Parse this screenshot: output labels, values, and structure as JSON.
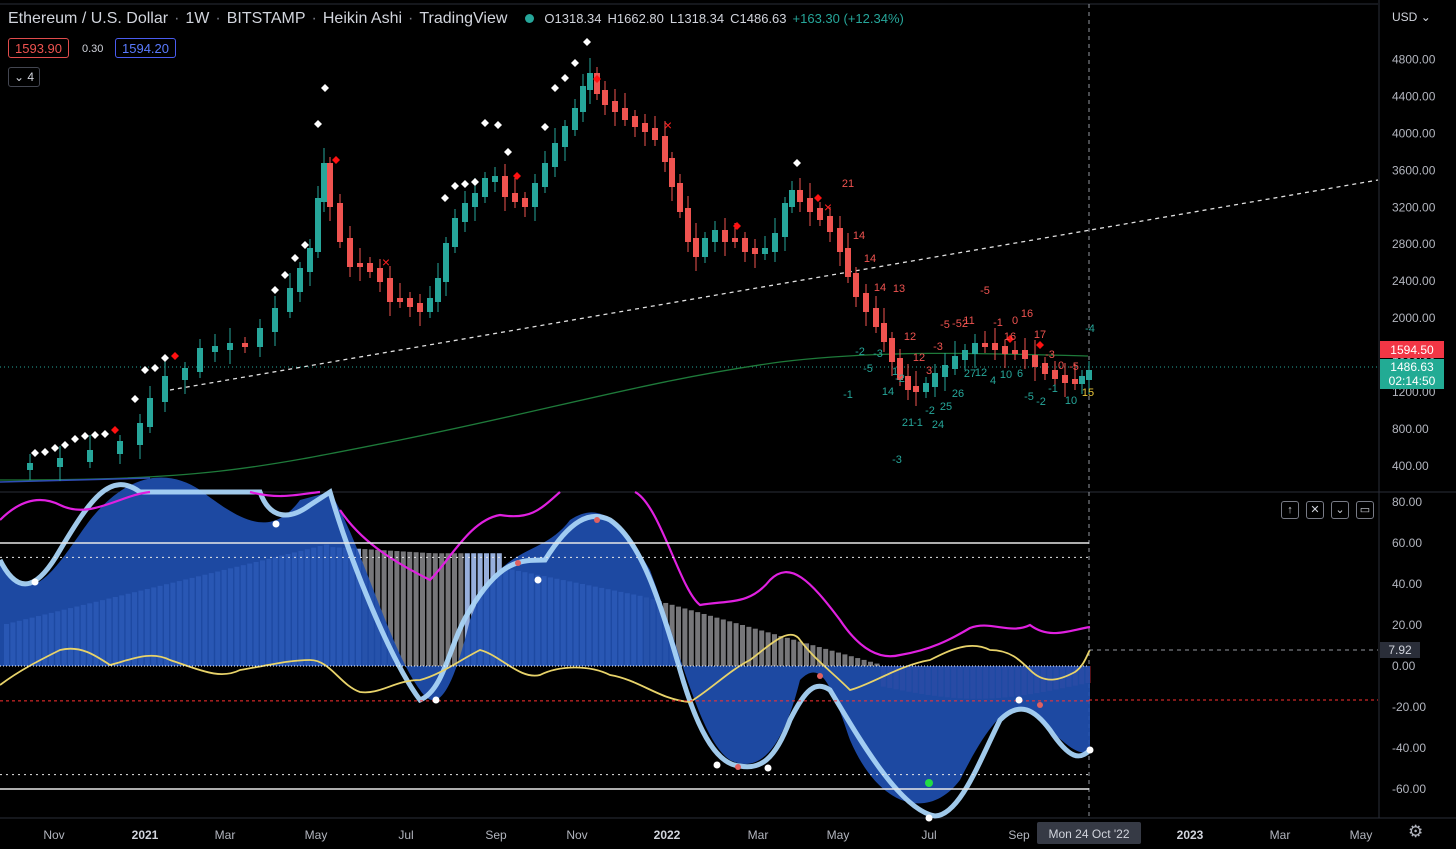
{
  "header": {
    "symbol": "Ethereum / U.S. Dollar",
    "interval": "1W",
    "exchange": "BITSTAMP",
    "chart_style": "Heikin Ashi",
    "provider": "TradingView",
    "open": "O1318.34",
    "high": "H1662.80",
    "low": "L1318.34",
    "close": "C1486.63",
    "change": "+163.30 (+12.34%)"
  },
  "trade": {
    "sell_price": "1593.90",
    "spread": "0.30",
    "buy_price": "1594.20"
  },
  "indicator_collapse": {
    "chevron": "⌄",
    "count": "4"
  },
  "currency_menu": "USD",
  "price_axis": {
    "ticks": [
      "4800.00",
      "4400.00",
      "4000.00",
      "3600.00",
      "3200.00",
      "2800.00",
      "2400.00",
      "2000.00",
      "1600.00",
      "1200.00",
      "800.00",
      "400.00"
    ]
  },
  "price_badges": {
    "red": "1594.50",
    "green_price": "1486.63",
    "green_timer": "02:14:50"
  },
  "osc_axis": {
    "ticks": [
      "80.00",
      "60.00",
      "40.00",
      "20.00",
      "0.00",
      "-20.00",
      "-40.00",
      "-60.00"
    ],
    "marker": "7.92"
  },
  "time_axis": {
    "labels": [
      "Nov",
      "2021",
      "Mar",
      "May",
      "Jul",
      "Sep",
      "Nov",
      "2022",
      "Mar",
      "May",
      "Jul",
      "Sep",
      "2023",
      "Mar",
      "May"
    ],
    "crosshair": "Mon 24 Oct '22"
  },
  "pane_buttons": [
    "↑",
    "✕",
    "⌄",
    "▭"
  ],
  "td_labels": [
    "21",
    "14",
    "14",
    "14",
    "13",
    "12",
    "12",
    "3",
    "-3",
    "-5",
    "-52",
    "-5",
    "11",
    "-1",
    "0",
    "16",
    "16",
    "17",
    "-3",
    "-4",
    "-2",
    "-3",
    "-5",
    "-1",
    "14",
    "-2",
    "21",
    "24",
    "25",
    "26",
    "27",
    "12",
    "4",
    "10",
    "6",
    "-5",
    "-2",
    "-1",
    "10",
    "0",
    "-5",
    "15",
    "-3",
    "-1",
    "1",
    "-2"
  ],
  "colors": {
    "up": "#26a69a",
    "down": "#ef5350",
    "wave_dark": "#1f4fb0",
    "wave_light": "#a9d4f7",
    "mfi": "#e020e0",
    "vwap": "#e8d36a"
  }
}
